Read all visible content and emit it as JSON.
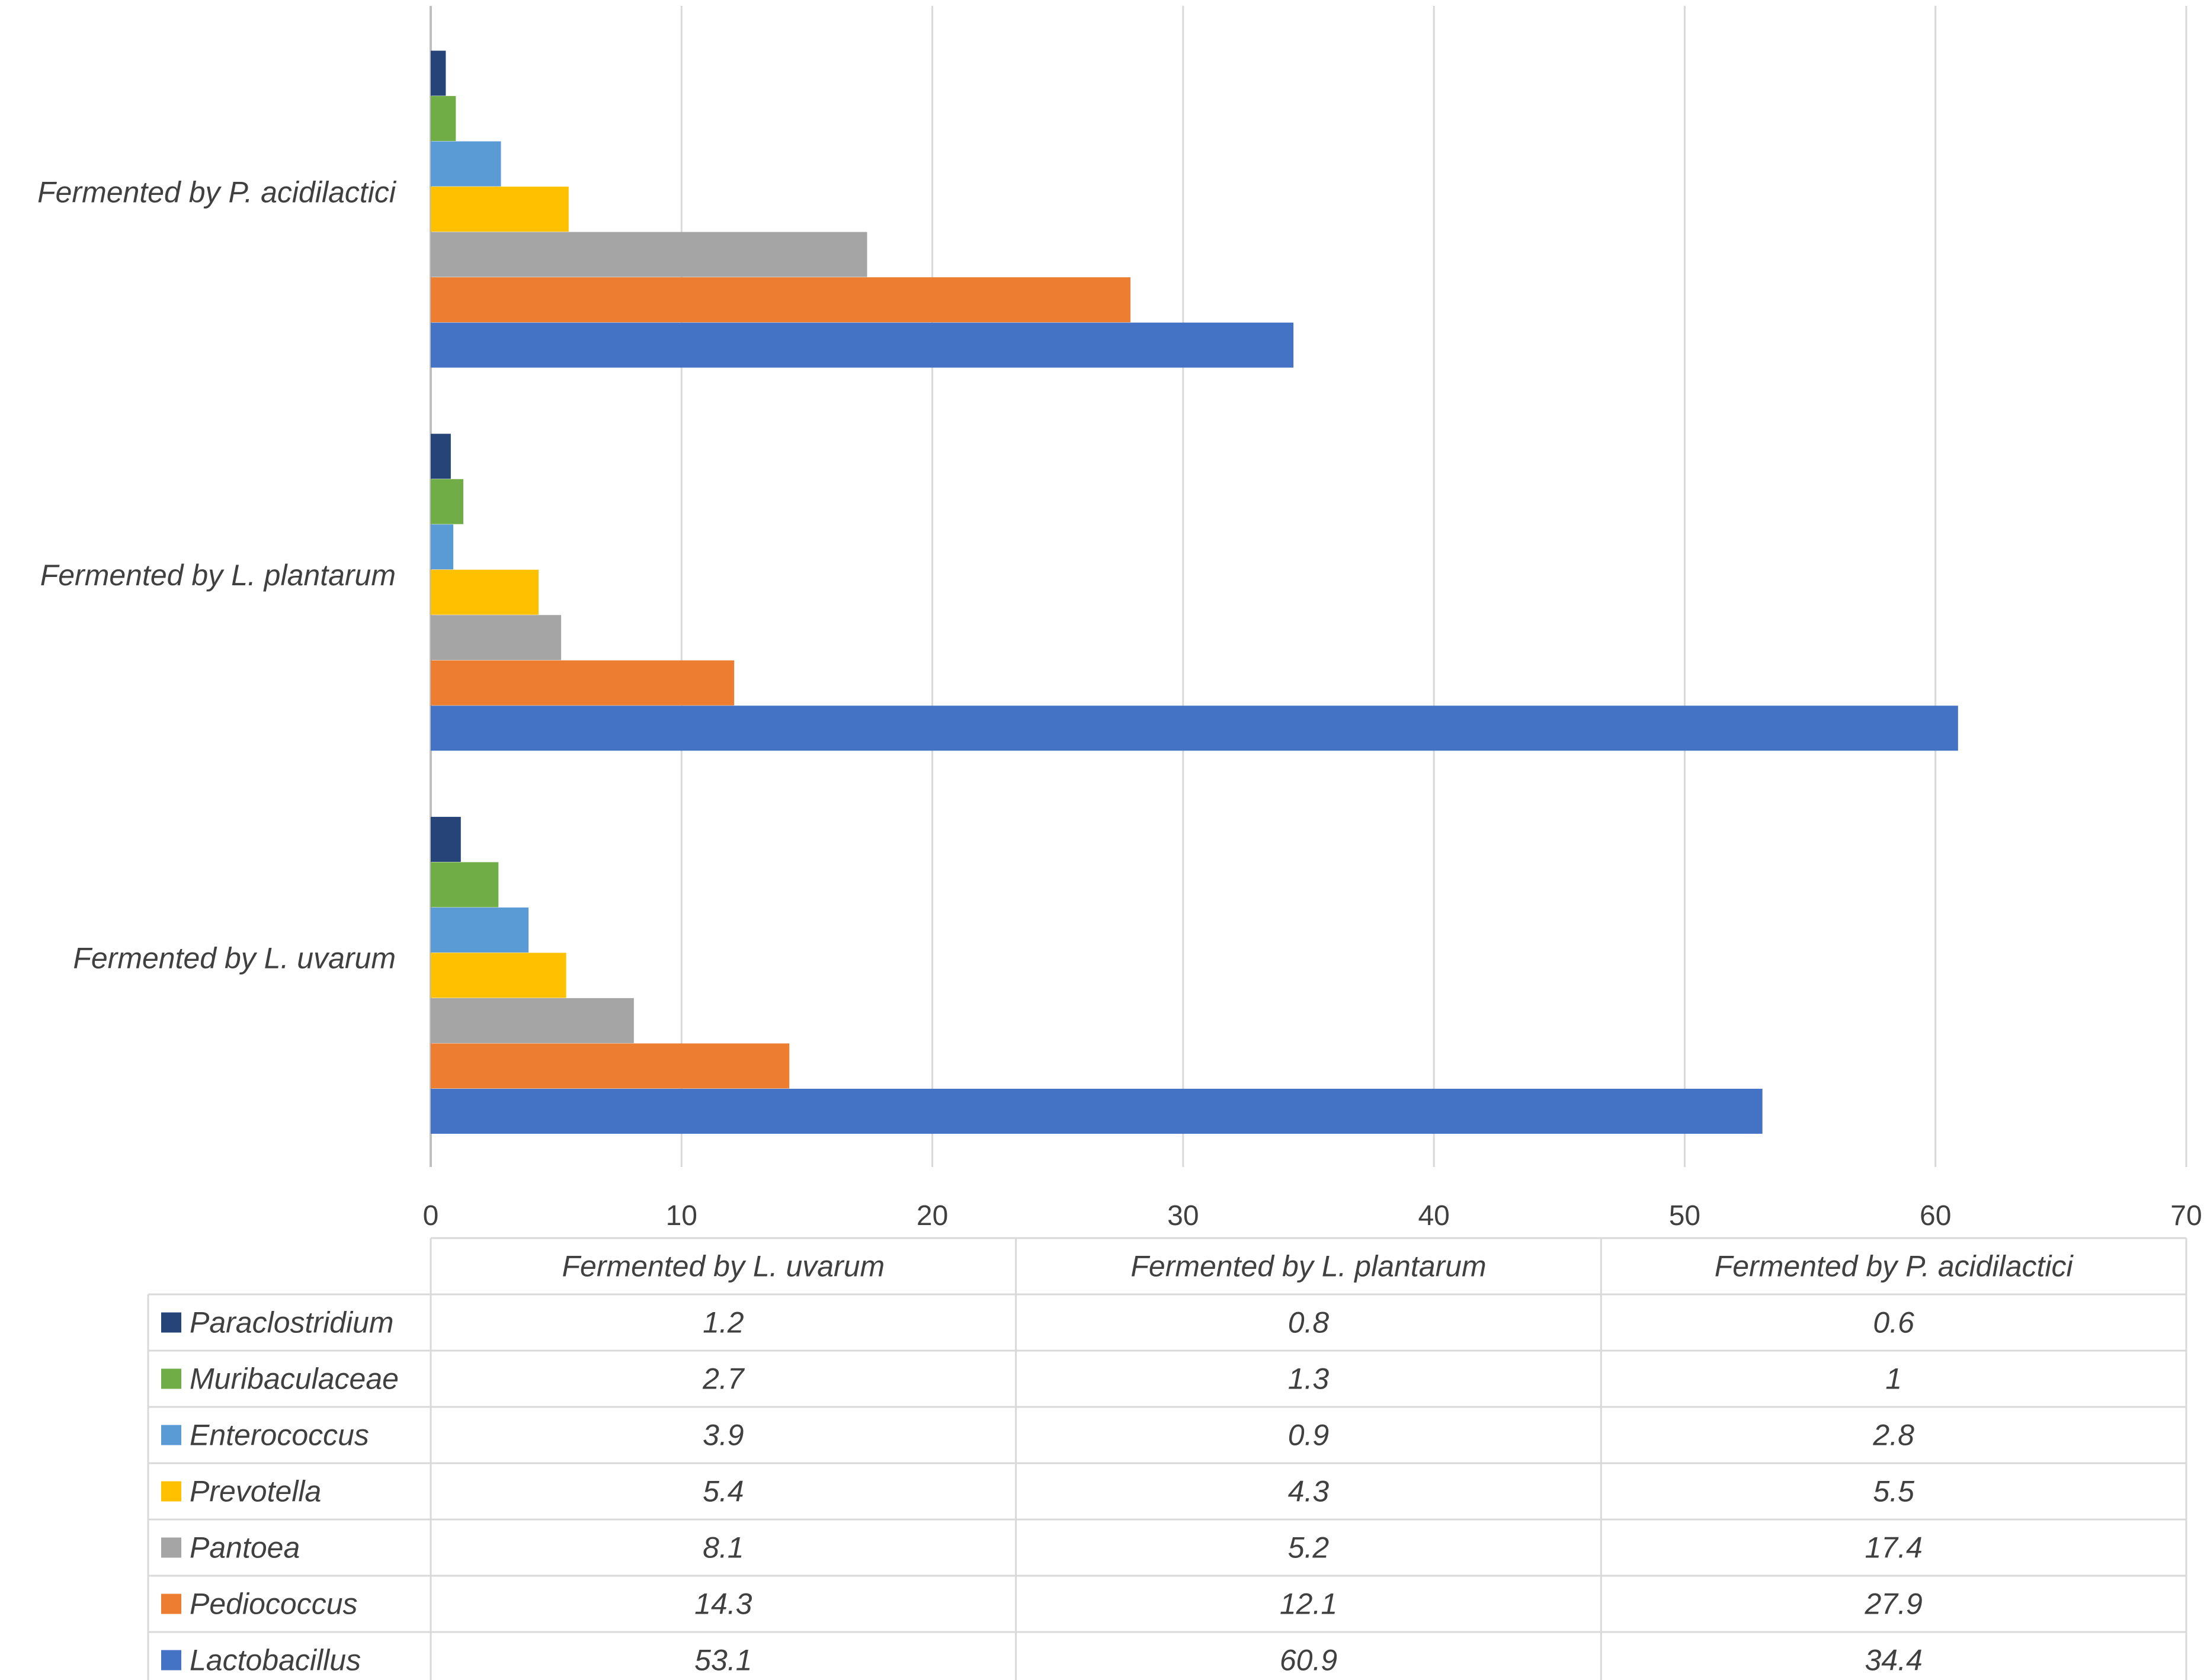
{
  "chart_data": {
    "type": "bar",
    "orientation": "horizontal",
    "title": "",
    "xlabel": "",
    "ylabel": "",
    "xlim": [
      0,
      70
    ],
    "x_ticks": [
      0,
      10,
      20,
      30,
      40,
      50,
      60,
      70
    ],
    "grid": true,
    "legend_placement": "bottom data table",
    "categories": [
      "Fermented by L. uvarum",
      "Fermented by L. plantarum",
      "Fermented by P. acidilactici"
    ],
    "series": [
      {
        "name": "Paraclostridium",
        "color": "#264478",
        "values": [
          1.2,
          0.8,
          0.6
        ],
        "labels": [
          "1.2",
          "0.8",
          "0.6"
        ]
      },
      {
        "name": "Muribaculaceae",
        "color": "#70AD47",
        "values": [
          2.7,
          1.3,
          1
        ],
        "labels": [
          "2.7",
          "1.3",
          "1"
        ]
      },
      {
        "name": "Enterococcus",
        "color": "#5B9BD5",
        "values": [
          3.9,
          0.9,
          2.8
        ],
        "labels": [
          "3.9",
          "0.9",
          "2.8"
        ]
      },
      {
        "name": "Prevotella",
        "color": "#FFC000",
        "values": [
          5.4,
          4.3,
          5.5
        ],
        "labels": [
          "5.4",
          "4.3",
          "5.5"
        ]
      },
      {
        "name": "Pantoea",
        "color": "#A5A5A5",
        "values": [
          8.1,
          5.2,
          17.4
        ],
        "labels": [
          "8.1",
          "5.2",
          "17.4"
        ]
      },
      {
        "name": "Pediococcus",
        "color": "#ED7D31",
        "values": [
          14.3,
          12.1,
          27.9
        ],
        "labels": [
          "14.3",
          "12.1",
          "27.9"
        ]
      },
      {
        "name": "Lactobacillus",
        "color": "#4472C4",
        "values": [
          53.1,
          60.9,
          34.4
        ],
        "labels": [
          "53.1",
          "60.9",
          "34.4"
        ]
      }
    ]
  }
}
